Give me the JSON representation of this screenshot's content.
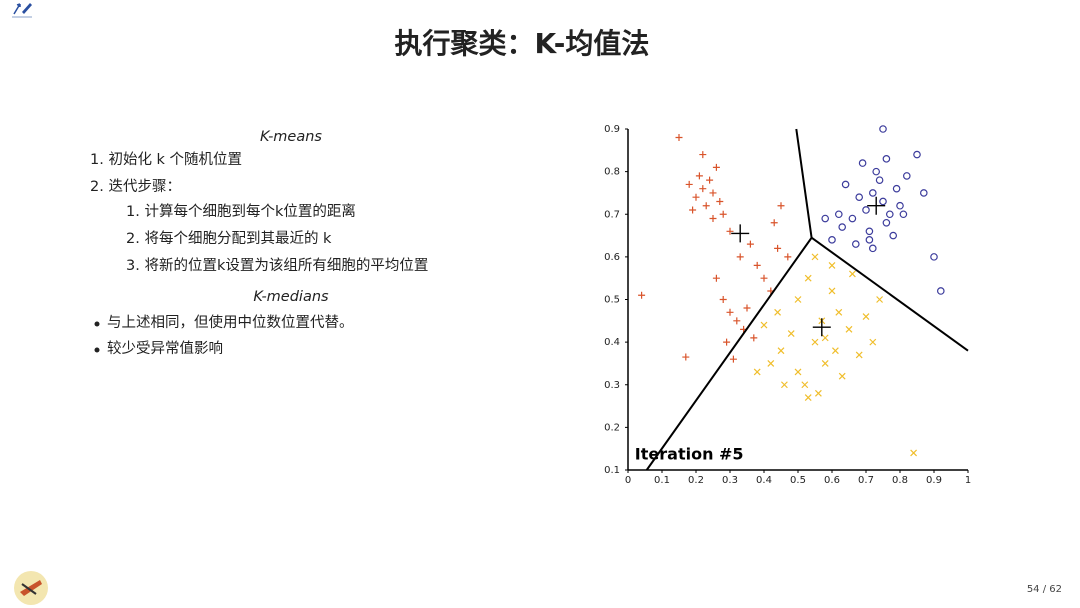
{
  "title": "执行聚类：K-均值法",
  "kmeans": {
    "heading": "K-means",
    "items": [
      "1. 初始化 k 个随机位置",
      "2. 迭代步骤："
    ],
    "subitems": [
      "1. 计算每个细胞到每个k位置的距离",
      "2. 将每个细胞分配到其最近的 k",
      "3. 将新的位置k设置为该组所有细胞的平均位置"
    ]
  },
  "kmedians": {
    "heading": "K-medians",
    "items": [
      "与上述相同，但使用中位数位置代替。",
      "较少受异常值影响"
    ]
  },
  "page_number": "54 / 62",
  "chart_data": {
    "type": "scatter",
    "xlim": [
      0,
      1
    ],
    "ylim": [
      0.1,
      0.9
    ],
    "xticks": [
      0,
      0.1,
      0.2,
      0.3,
      0.4,
      0.5,
      0.6,
      0.7,
      0.8,
      0.9,
      1
    ],
    "yticks": [
      0.1,
      0.2,
      0.3,
      0.4,
      0.5,
      0.6,
      0.7,
      0.8,
      0.9
    ],
    "annotation": "Iteration #5",
    "annotation_x": 0.02,
    "annotation_y": 0.135,
    "series": [
      {
        "marker": "plus",
        "color": "#d9542b",
        "x": [
          0.15,
          0.18,
          0.2,
          0.21,
          0.22,
          0.23,
          0.24,
          0.25,
          0.26,
          0.27,
          0.28,
          0.19,
          0.22,
          0.25,
          0.3,
          0.33,
          0.36,
          0.38,
          0.4,
          0.42,
          0.44,
          0.28,
          0.3,
          0.32,
          0.34,
          0.37,
          0.26,
          0.29,
          0.31,
          0.35,
          0.04,
          0.17,
          0.43,
          0.45,
          0.47
        ],
        "values": [
          0.88,
          0.77,
          0.74,
          0.79,
          0.76,
          0.72,
          0.78,
          0.75,
          0.81,
          0.73,
          0.7,
          0.71,
          0.84,
          0.69,
          0.66,
          0.6,
          0.63,
          0.58,
          0.55,
          0.52,
          0.62,
          0.5,
          0.47,
          0.45,
          0.43,
          0.41,
          0.55,
          0.4,
          0.36,
          0.48,
          0.51,
          0.365,
          0.68,
          0.72,
          0.6
        ]
      },
      {
        "marker": "circle",
        "color": "#3c3c9c",
        "x": [
          0.75,
          0.72,
          0.7,
          0.74,
          0.77,
          0.73,
          0.76,
          0.68,
          0.71,
          0.79,
          0.66,
          0.64,
          0.69,
          0.8,
          0.82,
          0.78,
          0.62,
          0.6,
          0.67,
          0.72,
          0.75,
          0.85,
          0.87,
          0.9,
          0.92,
          0.63,
          0.58,
          0.71,
          0.81,
          0.76
        ],
        "values": [
          0.73,
          0.75,
          0.71,
          0.78,
          0.7,
          0.8,
          0.68,
          0.74,
          0.66,
          0.76,
          0.69,
          0.77,
          0.82,
          0.72,
          0.79,
          0.65,
          0.7,
          0.64,
          0.63,
          0.62,
          0.9,
          0.84,
          0.75,
          0.6,
          0.52,
          0.67,
          0.69,
          0.64,
          0.7,
          0.83
        ]
      },
      {
        "marker": "cross",
        "color": "#f0be2c",
        "x": [
          0.57,
          0.5,
          0.53,
          0.55,
          0.6,
          0.62,
          0.65,
          0.58,
          0.48,
          0.45,
          0.42,
          0.4,
          0.52,
          0.56,
          0.63,
          0.68,
          0.7,
          0.74,
          0.72,
          0.66,
          0.6,
          0.55,
          0.5,
          0.46,
          0.44,
          0.53,
          0.58,
          0.61,
          0.84,
          0.38
        ],
        "values": [
          0.45,
          0.5,
          0.55,
          0.4,
          0.52,
          0.47,
          0.43,
          0.35,
          0.42,
          0.38,
          0.35,
          0.44,
          0.3,
          0.28,
          0.32,
          0.37,
          0.46,
          0.5,
          0.4,
          0.56,
          0.58,
          0.6,
          0.33,
          0.3,
          0.47,
          0.27,
          0.41,
          0.38,
          0.14,
          0.33
        ]
      },
      {
        "marker": "centroid",
        "color": "#000000",
        "x": [
          0.33,
          0.73,
          0.57
        ],
        "values": [
          0.655,
          0.72,
          0.435
        ]
      }
    ],
    "boundaries": [
      {
        "color": "#000000",
        "x": [
          0.495,
          0.54,
          0.055
        ],
        "values": [
          0.9,
          0.645,
          0.1
        ]
      },
      {
        "color": "#000000",
        "x": [
          0.54,
          1
        ],
        "values": [
          0.645,
          0.38
        ]
      }
    ]
  }
}
